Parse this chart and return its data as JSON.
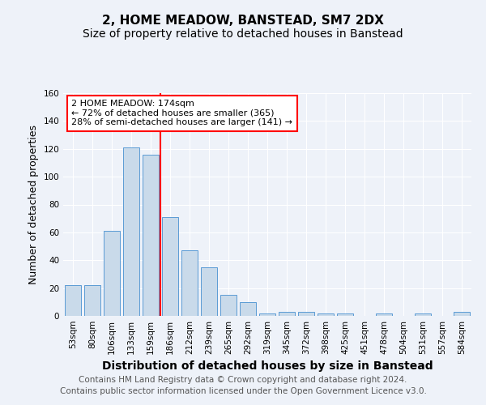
{
  "title1": "2, HOME MEADOW, BANSTEAD, SM7 2DX",
  "title2": "Size of property relative to detached houses in Banstead",
  "xlabel": "Distribution of detached houses by size in Banstead",
  "ylabel": "Number of detached properties",
  "categories": [
    "53sqm",
    "80sqm",
    "106sqm",
    "133sqm",
    "159sqm",
    "186sqm",
    "212sqm",
    "239sqm",
    "265sqm",
    "292sqm",
    "319sqm",
    "345sqm",
    "372sqm",
    "398sqm",
    "425sqm",
    "451sqm",
    "478sqm",
    "504sqm",
    "531sqm",
    "557sqm",
    "584sqm"
  ],
  "values": [
    22,
    22,
    61,
    121,
    116,
    71,
    47,
    35,
    15,
    10,
    2,
    3,
    3,
    2,
    2,
    0,
    2,
    0,
    2,
    0,
    3
  ],
  "bar_color": "#c9daea",
  "bar_edge_color": "#5b9bd5",
  "bar_width": 0.85,
  "red_line_x": 4.5,
  "annotation_text": "2 HOME MEADOW: 174sqm\n← 72% of detached houses are smaller (365)\n28% of semi-detached houses are larger (141) →",
  "ylim": [
    0,
    160
  ],
  "yticks": [
    0,
    20,
    40,
    60,
    80,
    100,
    120,
    140,
    160
  ],
  "footer1": "Contains HM Land Registry data © Crown copyright and database right 2024.",
  "footer2": "Contains public sector information licensed under the Open Government Licence v3.0.",
  "bg_color": "#eef2f9",
  "grid_color": "white",
  "title1_fontsize": 11,
  "title2_fontsize": 10,
  "xlabel_fontsize": 10,
  "ylabel_fontsize": 9,
  "tick_fontsize": 7.5,
  "footer_fontsize": 7.5
}
